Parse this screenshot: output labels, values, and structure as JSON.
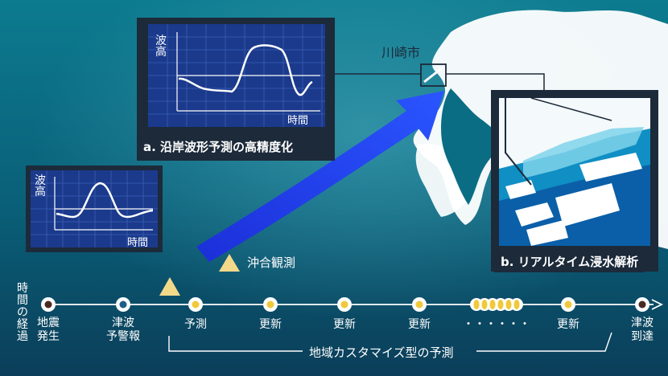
{
  "colors": {
    "sea_top": "#0b6f86",
    "sea_bottom": "#0b3f5c",
    "land": "#ffffff",
    "panel_bg": "#1c2a3a",
    "grid_bg": "#1b3a8c",
    "arrow": "#1a33e0",
    "triangle": "#f2d98a",
    "dot_fill_dark": "#4a2a22",
    "dot_fill_blue": "#1e5d8a",
    "dot_fill_yellow": "#f0c93a"
  },
  "city_label": "川崎市",
  "panel_a": {
    "title": "a. 沿岸波形予測の高精度化",
    "y_axis": "波高",
    "x_axis": "時間"
  },
  "panel_small": {
    "y_axis": "波高",
    "x_axis": "時間"
  },
  "panel_b": {
    "title": "b. リアルタイム浸水解析"
  },
  "offshore_label": "沖合観測",
  "timeline": {
    "axis_label": "時間の経過",
    "labels": [
      "地震\n発生",
      "津波\n予警報",
      "予測",
      "更新",
      "更新",
      "更新",
      "・・・・・・",
      "更新",
      "津波\n到達"
    ],
    "bracket_label": "地域カスタマイズ型の予測"
  }
}
